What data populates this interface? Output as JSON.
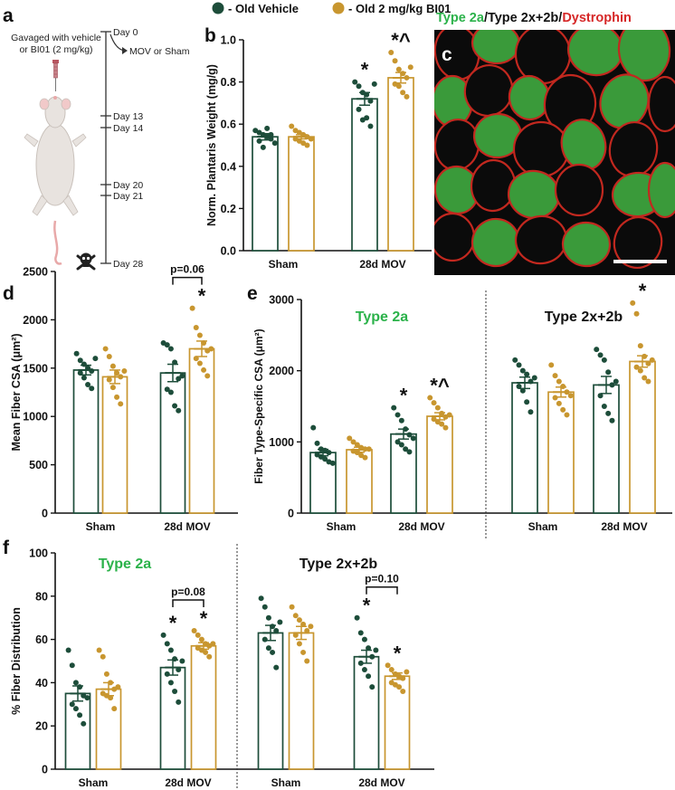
{
  "colors": {
    "vehicle": "#1d4d3a",
    "bi01": "#c8962f",
    "green_text": "#2bb24a",
    "red_text": "#d62828"
  },
  "legend": {
    "vehicle": "- Old Vehicle",
    "bi01": "- Old 2 mg/kg BI01"
  },
  "panel_labels": {
    "a": "a",
    "b": "b",
    "c": "c",
    "d": "d",
    "e": "e",
    "f": "f"
  },
  "panel_a": {
    "gavage_label": [
      "Gavaged with vehicle",
      "or BI01 (2 mg/kg)"
    ],
    "mov_label": "MOV or Sham",
    "days": [
      "Day 0",
      "Day 13",
      "Day 14",
      "Day 20",
      "Day 21",
      "Day 28"
    ],
    "icons": [
      "mouse-icon",
      "syringe-icon",
      "skull-crossbones-icon"
    ]
  },
  "panel_c": {
    "title_parts": [
      "Type 2a",
      "/Type 2x+2b/",
      "Dystrophin"
    ]
  },
  "chart_data": [
    {
      "id": "b",
      "type": "bar",
      "categories": [
        "Sham",
        "28d MOV"
      ],
      "ylabel": "Norm. Plantaris Weight (mg/g)",
      "ylim": [
        0,
        1.0
      ],
      "yticks": [
        "0.0",
        "0.2",
        "0.4",
        "0.6",
        "0.8",
        "1.0"
      ],
      "series": [
        {
          "name": "Old Vehicle",
          "values": [
            0.54,
            0.72
          ],
          "sem": [
            0.015,
            0.03
          ],
          "points": [
            [
              0.57,
              0.56,
              0.55,
              0.54,
              0.53,
              0.52,
              0.49,
              0.58,
              0.55,
              0.51
            ],
            [
              0.8,
              0.78,
              0.75,
              0.74,
              0.71,
              0.67,
              0.62,
              0.63,
              0.59,
              0.79
            ]
          ]
        },
        {
          "name": "Old 2 mg/kg BI01",
          "values": [
            0.54,
            0.82
          ],
          "sem": [
            0.01,
            0.025
          ],
          "points": [
            [
              0.59,
              0.57,
              0.56,
              0.55,
              0.54,
              0.53,
              0.52,
              0.51,
              0.5,
              0.53
            ],
            [
              0.94,
              0.9,
              0.86,
              0.84,
              0.82,
              0.79,
              0.78,
              0.75,
              0.73,
              0.87
            ]
          ]
        }
      ],
      "annotations": [
        {
          "group": 1,
          "series": 0,
          "text": "*"
        },
        {
          "group": 1,
          "series": 1,
          "text": "*^"
        }
      ]
    },
    {
      "id": "d",
      "type": "bar",
      "categories": [
        "Sham",
        "28d MOV"
      ],
      "ylabel": "Mean Fiber CSA (μm²)",
      "ylim": [
        0,
        2500
      ],
      "yticks": [
        "0",
        "500",
        "1000",
        "1500",
        "2000",
        "2500"
      ],
      "series": [
        {
          "name": "Old Vehicle",
          "values": [
            1480,
            1450
          ],
          "sem": [
            50,
            90
          ],
          "points": [
            [
              1650,
              1580,
              1540,
              1500,
              1470,
              1450,
              1400,
              1330,
              1290,
              1600
            ],
            [
              1760,
              1740,
              1700,
              1560,
              1390,
              1280,
              1250,
              1110,
              1060,
              1420
            ]
          ]
        },
        {
          "name": "Old 2 mg/kg BI01",
          "values": [
            1410,
            1700
          ],
          "sem": [
            70,
            80
          ],
          "points": [
            [
              1700,
              1620,
              1520,
              1450,
              1410,
              1380,
              1300,
              1200,
              1130,
              1470
            ],
            [
              2120,
              1920,
              1840,
              1760,
              1680,
              1600,
              1550,
              1480,
              1420,
              1700
            ]
          ]
        }
      ],
      "annotations": [
        {
          "group": 1,
          "series": 1,
          "text": "*"
        }
      ],
      "brackets": [
        {
          "group": 1,
          "text": "p=0.06"
        }
      ]
    },
    {
      "id": "e",
      "type": "bar",
      "panels": [
        "Type 2a",
        "Type 2x+2b"
      ],
      "categories": [
        "Sham",
        "28d MOV",
        "Sham",
        "28d MOV"
      ],
      "ylabel": "Fiber Type-Specific CSA (μm²)",
      "ylim": [
        0,
        3000
      ],
      "yticks": [
        "0",
        "1000",
        "2000",
        "3000"
      ],
      "series": [
        {
          "name": "Old Vehicle",
          "values": [
            850,
            1110,
            1830,
            1800
          ],
          "sem": [
            45,
            70,
            80,
            120
          ],
          "points": [
            [
              1200,
              980,
              900,
              880,
              850,
              820,
              790,
              760,
              720,
              700
            ],
            [
              1480,
              1380,
              1300,
              1180,
              1100,
              1000,
              960,
              900,
              860,
              1050
            ],
            [
              2150,
              2080,
              2000,
              1950,
              1850,
              1780,
              1720,
              1560,
              1420,
              1900
            ],
            [
              2300,
              2220,
              2150,
              1980,
              1800,
              1650,
              1500,
              1400,
              1300,
              1850
            ]
          ]
        },
        {
          "name": "Old 2 mg/kg BI01",
          "values": [
            890,
            1360,
            1700,
            2130
          ],
          "sem": [
            35,
            50,
            70,
            80
          ],
          "points": [
            [
              1050,
              1000,
              960,
              920,
              900,
              870,
              850,
              810,
              780,
              900
            ],
            [
              1620,
              1550,
              1480,
              1400,
              1350,
              1320,
              1280,
              1250,
              1200,
              1380
            ],
            [
              2080,
              1930,
              1850,
              1780,
              1700,
              1620,
              1540,
              1450,
              1380,
              1650
            ],
            [
              2950,
              2800,
              2350,
              2200,
              2100,
              2050,
              2000,
              1900,
              1850,
              2150
            ]
          ]
        }
      ],
      "annotations": [
        {
          "group": 1,
          "series": 0,
          "text": "*"
        },
        {
          "group": 1,
          "series": 1,
          "text": "*^"
        },
        {
          "group": 3,
          "series": 1,
          "text": "*"
        }
      ]
    },
    {
      "id": "f",
      "type": "bar",
      "panels": [
        "Type 2a",
        "Type 2x+2b"
      ],
      "categories": [
        "Sham",
        "28d MOV",
        "Sham",
        "28d MOV"
      ],
      "ylabel": "% Fiber Distribution",
      "ylim": [
        0,
        100
      ],
      "yticks": [
        "0",
        "20",
        "40",
        "60",
        "80",
        "100"
      ],
      "series": [
        {
          "name": "Old Vehicle",
          "values": [
            35,
            47,
            63,
            52
          ],
          "sem": [
            3.5,
            3.5,
            3.5,
            3.0
          ],
          "points": [
            [
              55,
              48,
              40,
              38,
              34,
              30,
              28,
              25,
              21,
              33
            ],
            [
              62,
              58,
              55,
              51,
              46,
              44,
              40,
              36,
              31,
              50
            ],
            [
              79,
              75,
              70,
              66,
              64,
              60,
              56,
              54,
              47,
              68
            ],
            [
              70,
              63,
              60,
              56,
              52,
              49,
              46,
              43,
              38,
              55
            ]
          ]
        },
        {
          "name": "Old 2 mg/kg BI01",
          "values": [
            37,
            57,
            63,
            43
          ],
          "sem": [
            3.0,
            1.5,
            3.0,
            1.5
          ],
          "points": [
            [
              55,
              52,
              44,
              40,
              37,
              35,
              34,
              33,
              28,
              38
            ],
            [
              64,
              62,
              60,
              58,
              57,
              56,
              55,
              54,
              52,
              58
            ],
            [
              75,
              71,
              69,
              67,
              64,
              62,
              58,
              54,
              50,
              66
            ],
            [
              48,
              46,
              44,
              43,
              42,
              40,
              39,
              38,
              36,
              45
            ]
          ]
        }
      ],
      "annotations": [
        {
          "group": 1,
          "series": 0,
          "text": "*"
        },
        {
          "group": 1,
          "series": 1,
          "text": "*"
        },
        {
          "group": 3,
          "series": 0,
          "text": "*"
        },
        {
          "group": 3,
          "series": 1,
          "text": "*"
        }
      ],
      "brackets": [
        {
          "group": 1,
          "text": "p=0.08"
        },
        {
          "group": 3,
          "text": "p=0.10"
        }
      ]
    }
  ]
}
